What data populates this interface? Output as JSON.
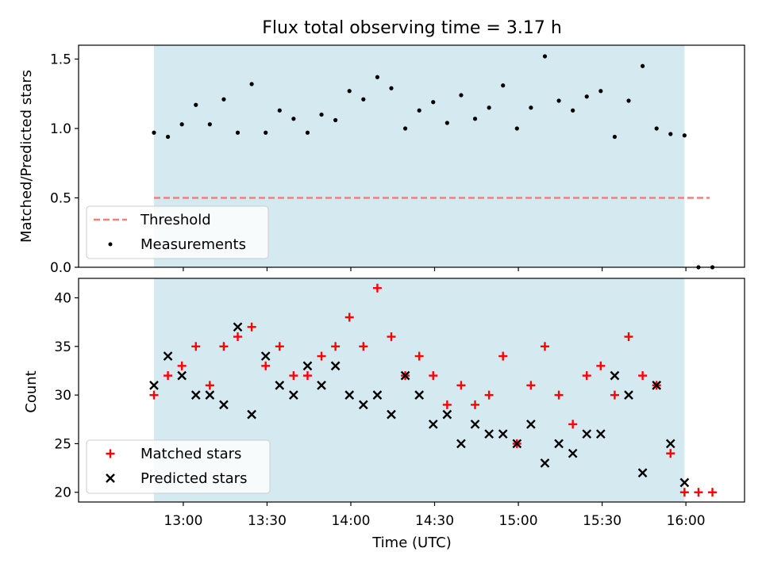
{
  "colors": {
    "shade": "#d4eaf0",
    "threshold": "#f08080",
    "matched": "#ff0000",
    "predicted": "#000000",
    "measurement": "#000000"
  },
  "chart_data": [
    {
      "type": "scatter",
      "title": "Flux total observing time = 3.17 h",
      "xlabel": "",
      "ylabel": "Matched/Predicted stars",
      "x_unit": "minutes since 00:00 UTC",
      "xlim": [
        742.5,
        981
      ],
      "ylim": [
        0,
        1.6
      ],
      "yticks": [
        0.0,
        0.5,
        1.0,
        1.5
      ],
      "ytick_labels": [
        "0.0",
        "0.5",
        "1.0",
        "1.5"
      ],
      "xticks": [
        780,
        810,
        840,
        870,
        900,
        930,
        960
      ],
      "shaded_span": [
        769.5,
        959.5
      ],
      "legend_position": "lower-left",
      "threshold": {
        "name": "Threshold",
        "x": [
          769.5,
          968.5
        ],
        "y": 0.5
      },
      "series": [
        {
          "name": "Measurements",
          "x": [
            769.5,
            774.5,
            779.5,
            784.5,
            789.5,
            794.5,
            799.5,
            804.5,
            809.5,
            814.5,
            819.5,
            824.5,
            829.5,
            834.5,
            839.5,
            844.5,
            849.5,
            854.5,
            859.5,
            864.5,
            869.5,
            874.5,
            879.5,
            884.5,
            889.5,
            894.5,
            899.5,
            904.5,
            909.5,
            914.5,
            919.5,
            924.5,
            929.5,
            934.5,
            939.5,
            944.5,
            949.5,
            954.5,
            959.5,
            964.5,
            969.5
          ],
          "y": [
            0.97,
            0.94,
            1.03,
            1.17,
            1.03,
            1.21,
            0.97,
            1.32,
            0.97,
            1.13,
            1.07,
            0.97,
            1.1,
            1.06,
            1.27,
            1.21,
            1.37,
            1.29,
            1.0,
            1.13,
            1.19,
            1.04,
            1.24,
            1.07,
            1.15,
            1.31,
            1.0,
            1.15,
            1.52,
            1.2,
            1.13,
            1.23,
            1.27,
            0.94,
            1.2,
            1.45,
            1.0,
            0.96,
            0.95,
            0.0,
            0.0
          ]
        }
      ]
    },
    {
      "type": "scatter",
      "title": "",
      "xlabel": "Time (UTC)",
      "ylabel": "Count",
      "x_unit": "minutes since 00:00 UTC",
      "xlim": [
        742.5,
        981
      ],
      "ylim": [
        19,
        42
      ],
      "yticks": [
        20,
        25,
        30,
        35,
        40
      ],
      "ytick_labels": [
        "20",
        "25",
        "30",
        "35",
        "40"
      ],
      "xticks": [
        780,
        810,
        840,
        870,
        900,
        930,
        960
      ],
      "xtick_labels": [
        "13:00",
        "13:30",
        "14:00",
        "14:30",
        "15:00",
        "15:30",
        "16:00"
      ],
      "shaded_span": [
        769.5,
        959.5
      ],
      "legend_position": "lower-left",
      "series": [
        {
          "name": "Matched stars",
          "marker": "plus",
          "x": [
            769.5,
            774.5,
            779.5,
            784.5,
            789.5,
            794.5,
            799.5,
            804.5,
            809.5,
            814.5,
            819.5,
            824.5,
            829.5,
            834.5,
            839.5,
            844.5,
            849.5,
            854.5,
            859.5,
            864.5,
            869.5,
            874.5,
            879.5,
            884.5,
            889.5,
            894.5,
            899.5,
            904.5,
            909.5,
            914.5,
            919.5,
            924.5,
            929.5,
            934.5,
            939.5,
            944.5,
            949.5,
            954.5,
            959.5,
            964.5,
            969.5
          ],
          "y": [
            30,
            32,
            33,
            35,
            31,
            35,
            36,
            37,
            33,
            35,
            32,
            32,
            34,
            35,
            38,
            35,
            41,
            36,
            32,
            34,
            32,
            29,
            31,
            29,
            30,
            34,
            25,
            31,
            35,
            30,
            27,
            32,
            33,
            30,
            36,
            32,
            31,
            24,
            20,
            20,
            20
          ]
        },
        {
          "name": "Predicted stars",
          "marker": "x",
          "x": [
            769.5,
            774.5,
            779.5,
            784.5,
            789.5,
            794.5,
            799.5,
            804.5,
            809.5,
            814.5,
            819.5,
            824.5,
            829.5,
            834.5,
            839.5,
            844.5,
            849.5,
            854.5,
            859.5,
            864.5,
            869.5,
            874.5,
            879.5,
            884.5,
            889.5,
            894.5,
            899.5,
            904.5,
            909.5,
            914.5,
            919.5,
            924.5,
            929.5,
            934.5,
            939.5,
            944.5,
            949.5,
            954.5,
            959.5
          ],
          "y": [
            31,
            34,
            32,
            30,
            30,
            29,
            37,
            28,
            34,
            31,
            30,
            33,
            31,
            33,
            30,
            29,
            30,
            28,
            32,
            30,
            27,
            28,
            25,
            27,
            26,
            26,
            25,
            27,
            23,
            25,
            24,
            26,
            26,
            32,
            30,
            22,
            31,
            25,
            21
          ]
        }
      ]
    }
  ]
}
